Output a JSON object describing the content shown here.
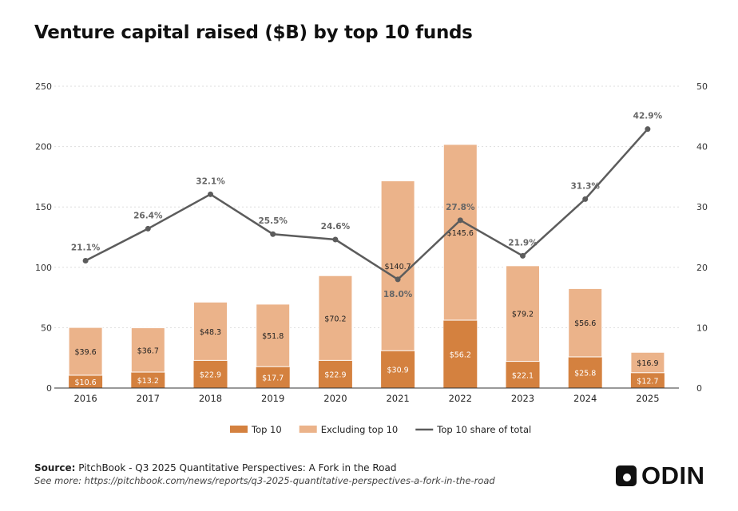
{
  "title": "Venture capital raised ($B) by top 10 funds",
  "source_label": "Source:",
  "source_text": "PitchBook - Q3 2025 Quantitative Perspectives: A Fork in the Road",
  "see_more": "See more: https://pitchbook.com/news/reports/q3-2025-quantitative-perspectives-a-fork-in-the-road",
  "logo_text": "ODIN",
  "chart_data": {
    "type": "bar",
    "title": "Venture capital raised ($B) by top 10 funds",
    "categories": [
      "2016",
      "2017",
      "2018",
      "2019",
      "2020",
      "2021",
      "2022",
      "2023",
      "2024",
      "2025"
    ],
    "series": [
      {
        "name": "Top 10",
        "type": "stacked-bar",
        "color": "#d4813f",
        "values": [
          10.6,
          13.2,
          22.9,
          17.7,
          22.9,
          30.9,
          56.2,
          22.1,
          25.8,
          12.7
        ],
        "labels": [
          "$10.6",
          "$13.2",
          "$22.9",
          "$17.7",
          "$22.9",
          "$30.9",
          "$56.2",
          "$22.1",
          "$25.8",
          "$12.7"
        ]
      },
      {
        "name": "Excluding top 10",
        "type": "stacked-bar",
        "color": "#ebb38a",
        "values": [
          39.6,
          36.7,
          48.3,
          51.8,
          70.2,
          140.7,
          145.6,
          79.2,
          56.6,
          16.9
        ],
        "labels": [
          "$39.6",
          "$36.7",
          "$48.3",
          "$51.8",
          "$70.2",
          "$140.7",
          "$145.6",
          "$79.2",
          "$56.6",
          "$16.9"
        ]
      },
      {
        "name": "Top 10 share of total",
        "type": "line",
        "axis": "right",
        "color": "#5c5c5c",
        "values": [
          21.1,
          26.4,
          32.1,
          25.5,
          24.6,
          18.0,
          27.8,
          21.9,
          31.3,
          42.9
        ],
        "labels": [
          "21.1%",
          "26.4%",
          "32.1%",
          "25.5%",
          "24.6%",
          "18.0%",
          "27.8%",
          "21.9%",
          "31.3%",
          "42.9%"
        ]
      }
    ],
    "ylim": [
      0,
      250
    ],
    "yticks": [
      "0",
      "50",
      "100",
      "150",
      "200",
      "250"
    ],
    "y2lim": [
      0,
      50
    ],
    "y2ticks": [
      "0",
      "10",
      "20",
      "30",
      "40",
      "50"
    ],
    "grid": true,
    "legend": "bottom"
  }
}
